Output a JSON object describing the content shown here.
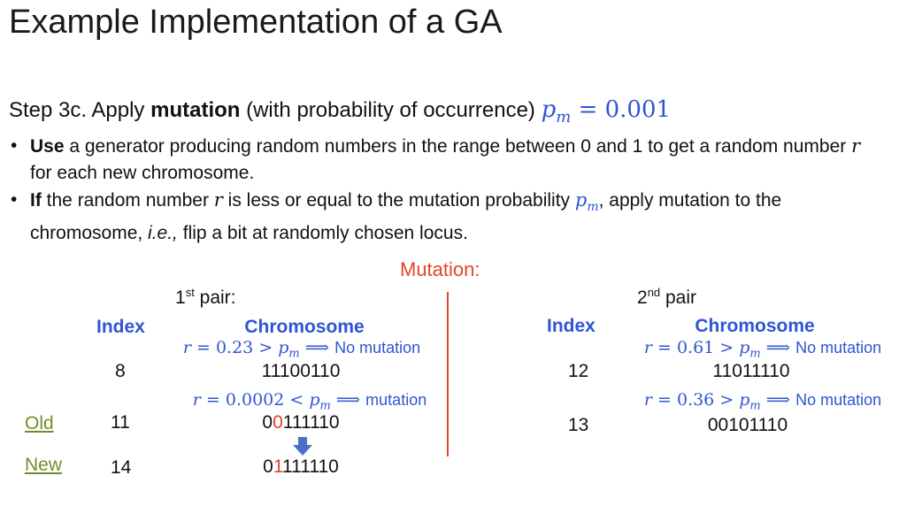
{
  "title": "Example Implementation of a GA",
  "step": {
    "prefix": "Step 3c. Apply ",
    "bold": "mutation",
    "suffix": " (with probability of occurrence) ",
    "pm_var": "p",
    "pm_sub": "m",
    "pm_eq": " = 0.001"
  },
  "bullets": [
    {
      "bold": "Use",
      "text1": " a generator producing random numbers in the range between 0 and 1 to get a random number ",
      "var": "r",
      "text2": " for each new chromosome."
    },
    {
      "bold": "If",
      "text1": " the random number ",
      "var": "r",
      "text2": " is less or equal to the mutation probability ",
      "pm": "p",
      "pm_sub": "m",
      "text3": ", apply mutation to the chromosome, ",
      "italic": "i.e.,",
      "text4": " flip a bit at randomly chosen locus."
    }
  ],
  "mutation_title": "Mutation:",
  "pair1": {
    "label_num": "1",
    "label_sup": "st",
    "label_rest": " pair:",
    "index_header": "Index",
    "chromosome_header": "Chromosome",
    "cond1": {
      "lhs": "r",
      "eq": " = 0.23 > ",
      "p": "p",
      "sub": "m",
      "arrow": " ⟹ ",
      "result": "No mutation"
    },
    "row1": {
      "index": "8",
      "chromosome": "11100110"
    },
    "cond2": {
      "lhs": "r",
      "eq": " = 0.0002 < ",
      "p": "p",
      "sub": "m",
      "arrow": " ⟹ ",
      "result": "mutation"
    },
    "row2": {
      "label": "Old",
      "index": "11",
      "chrom_a": "0",
      "chrom_b": "0",
      "chrom_c": "111110"
    },
    "row3": {
      "label": "New",
      "index": "14",
      "chrom_a": "0",
      "chrom_b": "1",
      "chrom_c": "111110"
    }
  },
  "pair2": {
    "label_num": "2",
    "label_sup": "nd",
    "label_rest": " pair",
    "index_header": "Index",
    "chromosome_header": "Chromosome",
    "cond1": {
      "lhs": "r",
      "eq": " = 0.61 > ",
      "p": "p",
      "sub": "m",
      "arrow": " ⟹ ",
      "result": "No mutation"
    },
    "row1": {
      "index": "12",
      "chromosome": "11011110"
    },
    "cond2": {
      "lhs": "r",
      "eq": " = 0.36 > ",
      "p": "p",
      "sub": "m",
      "arrow": " ⟹ ",
      "result": "No mutation"
    },
    "row2": {
      "index": "13",
      "chromosome": "00101110"
    }
  },
  "colors": {
    "accent": "#2f55d4",
    "mutation": "#e0452a",
    "label": "#6f8f2a",
    "arrow": "#4a72c4"
  },
  "icons": {
    "down_arrow": "down-arrow-icon"
  }
}
